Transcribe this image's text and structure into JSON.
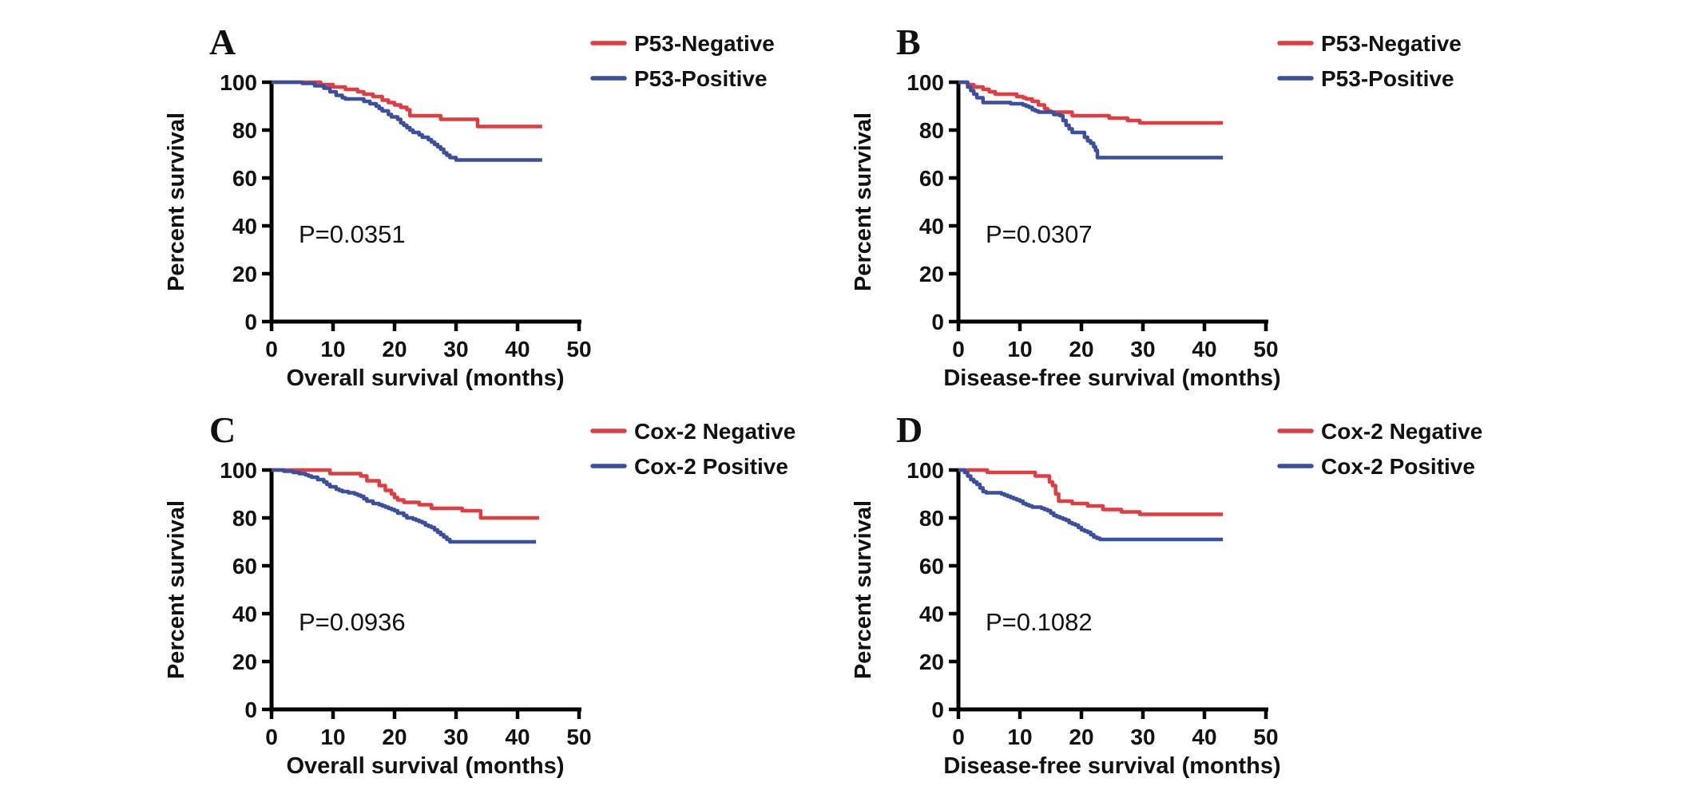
{
  "figure": {
    "background_color": "#ffffff",
    "axis_color": "#000000",
    "text_color": "#111111"
  },
  "chart_data": [
    {
      "type": "line",
      "subtype": "kaplan-meier-step",
      "panel_label": "A",
      "xlabel": "Overall survival (months)",
      "ylabel": "Percent survival",
      "xlim": [
        0,
        50
      ],
      "ylim": [
        0,
        100
      ],
      "xticks": [
        0,
        10,
        20,
        30,
        40,
        50
      ],
      "yticks": [
        0,
        20,
        40,
        60,
        80,
        100
      ],
      "grid": false,
      "legend_position": "top-right",
      "p_value_label": "P=0.0351",
      "series": [
        {
          "name": "P53-Negative",
          "color": "#e23c40",
          "end_x": 44,
          "points": [
            [
              0,
              100
            ],
            [
              8,
              99
            ],
            [
              10,
              98
            ],
            [
              12,
              97
            ],
            [
              14,
              96
            ],
            [
              15,
              95
            ],
            [
              16.5,
              94
            ],
            [
              18,
              92.5
            ],
            [
              19,
              91.5
            ],
            [
              20,
              90.5
            ],
            [
              21,
              89.5
            ],
            [
              22,
              88.5
            ],
            [
              22.5,
              86
            ],
            [
              27.5,
              84.5
            ],
            [
              33.5,
              81.5
            ]
          ]
        },
        {
          "name": "P53-Positive",
          "color": "#3a4f9e",
          "end_x": 44,
          "points": [
            [
              0,
              100
            ],
            [
              5,
              99.5
            ],
            [
              7,
              98.5
            ],
            [
              8.5,
              97.5
            ],
            [
              9.5,
              96
            ],
            [
              10.5,
              94.5
            ],
            [
              11.5,
              93.5
            ],
            [
              12,
              93
            ],
            [
              15,
              92
            ],
            [
              16,
              91
            ],
            [
              17,
              90
            ],
            [
              17.5,
              89
            ],
            [
              18,
              88
            ],
            [
              19,
              86.5
            ],
            [
              19.5,
              85.5
            ],
            [
              20.5,
              84.5
            ],
            [
              21,
              83
            ],
            [
              21.5,
              82
            ],
            [
              22,
              81
            ],
            [
              22.5,
              80
            ],
            [
              23,
              79
            ],
            [
              24,
              78
            ],
            [
              24.5,
              77
            ],
            [
              25.5,
              76
            ],
            [
              26,
              75
            ],
            [
              26.5,
              74
            ],
            [
              27,
              73
            ],
            [
              27.5,
              72
            ],
            [
              28,
              70.5
            ],
            [
              28.5,
              69.5
            ],
            [
              29,
              68.5
            ],
            [
              30,
              67.5
            ]
          ]
        }
      ]
    },
    {
      "type": "line",
      "subtype": "kaplan-meier-step",
      "panel_label": "B",
      "xlabel": "Disease-free survival (months)",
      "ylabel": "Percent survival",
      "xlim": [
        0,
        50
      ],
      "ylim": [
        0,
        100
      ],
      "xticks": [
        0,
        10,
        20,
        30,
        40,
        50
      ],
      "yticks": [
        0,
        20,
        40,
        60,
        80,
        100
      ],
      "grid": false,
      "legend_position": "top-right",
      "p_value_label": "P=0.0307",
      "series": [
        {
          "name": "P53-Negative",
          "color": "#e23c40",
          "end_x": 43,
          "points": [
            [
              0,
              100
            ],
            [
              1.5,
              99
            ],
            [
              2.5,
              98
            ],
            [
              4,
              97
            ],
            [
              5,
              96
            ],
            [
              6,
              95
            ],
            [
              9.5,
              94
            ],
            [
              10.5,
              93.5
            ],
            [
              11,
              93
            ],
            [
              12,
              92
            ],
            [
              13,
              90.5
            ],
            [
              14,
              89
            ],
            [
              14.5,
              88
            ],
            [
              15,
              87.5
            ],
            [
              18.5,
              86
            ],
            [
              24.5,
              85
            ],
            [
              27.5,
              84
            ],
            [
              29.5,
              83
            ]
          ]
        },
        {
          "name": "P53-Positive",
          "color": "#3a4f9e",
          "end_x": 43,
          "points": [
            [
              0,
              100
            ],
            [
              1.5,
              98
            ],
            [
              2,
              96.5
            ],
            [
              2.5,
              95
            ],
            [
              3,
              93.5
            ],
            [
              4,
              91.5
            ],
            [
              8.5,
              91
            ],
            [
              10.5,
              90.5
            ],
            [
              11,
              90
            ],
            [
              11.5,
              89.5
            ],
            [
              12,
              88.5
            ],
            [
              12.5,
              88
            ],
            [
              13,
              87.5
            ],
            [
              15.5,
              86.5
            ],
            [
              16.5,
              86
            ],
            [
              17,
              84
            ],
            [
              17.5,
              82
            ],
            [
              18,
              80.5
            ],
            [
              18.5,
              79
            ],
            [
              20.5,
              77
            ],
            [
              21,
              75.5
            ],
            [
              21.5,
              74.5
            ],
            [
              22,
              73
            ],
            [
              22.3,
              71.5
            ],
            [
              22.6,
              68.5
            ]
          ]
        }
      ]
    },
    {
      "type": "line",
      "subtype": "kaplan-meier-step",
      "panel_label": "C",
      "xlabel": "Overall survival (months)",
      "ylabel": "Percent survival",
      "xlim": [
        0,
        50
      ],
      "ylim": [
        0,
        100
      ],
      "xticks": [
        0,
        10,
        20,
        30,
        40,
        50
      ],
      "yticks": [
        0,
        20,
        40,
        60,
        80,
        100
      ],
      "grid": false,
      "legend_position": "top-right",
      "p_value_label": "P=0.0936",
      "series": [
        {
          "name": "Cox-2 Negative",
          "color": "#e23c40",
          "end_x": 43.5,
          "points": [
            [
              0,
              100
            ],
            [
              9.5,
              98.5
            ],
            [
              14.5,
              97.5
            ],
            [
              15.5,
              95.5
            ],
            [
              17.5,
              93.5
            ],
            [
              18.5,
              91.5
            ],
            [
              19.5,
              90
            ],
            [
              20,
              88.5
            ],
            [
              20.5,
              87.5
            ],
            [
              21.5,
              86.5
            ],
            [
              24,
              85.5
            ],
            [
              26,
              84
            ],
            [
              31,
              83
            ],
            [
              34,
              80
            ]
          ]
        },
        {
          "name": "Cox-2 Positive",
          "color": "#3a4f9e",
          "end_x": 43,
          "points": [
            [
              0,
              100
            ],
            [
              2,
              99.5
            ],
            [
              3.5,
              99
            ],
            [
              4.5,
              98.5
            ],
            [
              5.5,
              98
            ],
            [
              6,
              97.5
            ],
            [
              6.5,
              97
            ],
            [
              7.5,
              96
            ],
            [
              8.5,
              95
            ],
            [
              9,
              94
            ],
            [
              9.5,
              93
            ],
            [
              10.5,
              92
            ],
            [
              11,
              91.5
            ],
            [
              11.5,
              91
            ],
            [
              12.5,
              90.5
            ],
            [
              13.5,
              90
            ],
            [
              14,
              89.5
            ],
            [
              14.5,
              89
            ],
            [
              15,
              88
            ],
            [
              15.5,
              87
            ],
            [
              16.5,
              86
            ],
            [
              17.5,
              85.5
            ],
            [
              18,
              85
            ],
            [
              18.5,
              84.5
            ],
            [
              19,
              84
            ],
            [
              19.5,
              83.5
            ],
            [
              20,
              83
            ],
            [
              20.5,
              82
            ],
            [
              21.5,
              81
            ],
            [
              22,
              80
            ],
            [
              23,
              79.5
            ],
            [
              23.5,
              79
            ],
            [
              24,
              78.5
            ],
            [
              24.5,
              78
            ],
            [
              25,
              77
            ],
            [
              25.5,
              76.5
            ],
            [
              26,
              76
            ],
            [
              26.5,
              75
            ],
            [
              27,
              74
            ],
            [
              27.5,
              73
            ],
            [
              28,
              72
            ],
            [
              28.5,
              71
            ],
            [
              29,
              70
            ]
          ]
        }
      ]
    },
    {
      "type": "line",
      "subtype": "kaplan-meier-step",
      "panel_label": "D",
      "xlabel": "Disease-free survival (months)",
      "ylabel": "Percent survival",
      "xlim": [
        0,
        50
      ],
      "ylim": [
        0,
        100
      ],
      "xticks": [
        0,
        10,
        20,
        30,
        40,
        50
      ],
      "yticks": [
        0,
        20,
        40,
        60,
        80,
        100
      ],
      "grid": false,
      "legend_position": "top-right",
      "p_value_label": "P=0.1082",
      "series": [
        {
          "name": "Cox-2 Negative",
          "color": "#e23c40",
          "end_x": 43,
          "points": [
            [
              0,
              100
            ],
            [
              4.7,
              99
            ],
            [
              12.5,
              97.5
            ],
            [
              14.8,
              95
            ],
            [
              15.3,
              93.5
            ],
            [
              15.8,
              90
            ],
            [
              16.3,
              87
            ],
            [
              18.5,
              86
            ],
            [
              21,
              85
            ],
            [
              23.5,
              83.5
            ],
            [
              26.5,
              82.5
            ],
            [
              29.5,
              81.5
            ]
          ]
        },
        {
          "name": "Cox-2 Positive",
          "color": "#3a4f9e",
          "end_x": 43,
          "points": [
            [
              0,
              100
            ],
            [
              1,
              99
            ],
            [
              1.5,
              97.5
            ],
            [
              2,
              96
            ],
            [
              2.5,
              95
            ],
            [
              3,
              94
            ],
            [
              3.5,
              92.5
            ],
            [
              4,
              91
            ],
            [
              4.5,
              90.5
            ],
            [
              7,
              90
            ],
            [
              7.5,
              89.5
            ],
            [
              8,
              89
            ],
            [
              8.5,
              88.5
            ],
            [
              9,
              88
            ],
            [
              9.5,
              87.5
            ],
            [
              10,
              87
            ],
            [
              10.5,
              86
            ],
            [
              11,
              85.5
            ],
            [
              11.5,
              85
            ],
            [
              12,
              84.5
            ],
            [
              13.5,
              84
            ],
            [
              14,
              83.5
            ],
            [
              14.5,
              83
            ],
            [
              15,
              82
            ],
            [
              15.5,
              81
            ],
            [
              16,
              80.5
            ],
            [
              16.5,
              80
            ],
            [
              17,
              79.5
            ],
            [
              17.5,
              79
            ],
            [
              18,
              78
            ],
            [
              18.5,
              77.5
            ],
            [
              19,
              77
            ],
            [
              19.5,
              76
            ],
            [
              20,
              75
            ],
            [
              20.5,
              74.5
            ],
            [
              21,
              74
            ],
            [
              21.5,
              73
            ],
            [
              22,
              72
            ],
            [
              22.5,
              71.5
            ],
            [
              23,
              71
            ]
          ]
        }
      ]
    }
  ]
}
